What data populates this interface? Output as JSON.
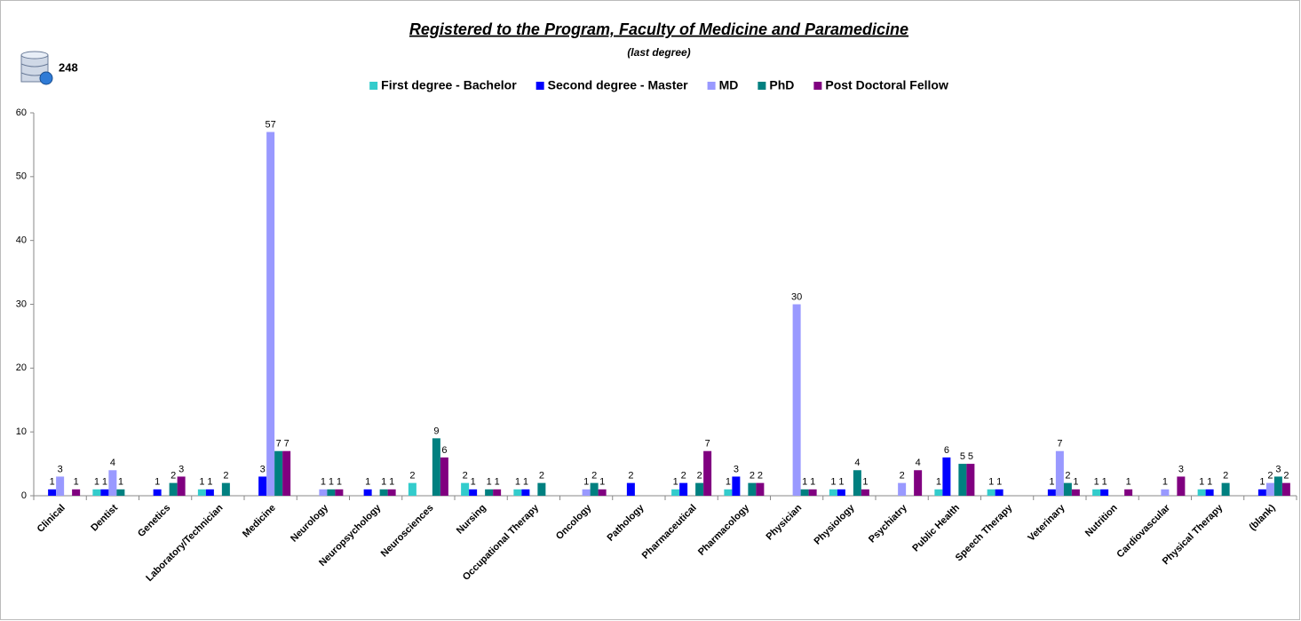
{
  "chart_data": {
    "type": "bar",
    "title": "Registered to the Program, Faculty of Medicine and Paramedicine",
    "subtitle": "(last degree)",
    "total": 248,
    "categories": [
      "Clinical",
      "Dentist",
      "Genetics",
      "Laboratory/Technician",
      "Medicine",
      "Neurology",
      "Neuropsychology",
      "Neurosciences",
      "Nursing",
      "Occupational Therapy",
      "Oncology",
      "Pathology",
      "Pharmaceutical",
      "Pharmacology",
      "Physician",
      "Physiology",
      "Psychiatry",
      "Public Health",
      "Speech Therapy",
      "Veterinary",
      "Nutrition",
      "Cardiovascular",
      "Physical Therapy",
      "(blank)"
    ],
    "series": [
      {
        "name": "First degree - Bachelor",
        "color": "#33cccc",
        "values": [
          null,
          1,
          null,
          1,
          null,
          null,
          null,
          2,
          2,
          1,
          null,
          null,
          1,
          1,
          null,
          1,
          null,
          1,
          1,
          null,
          1,
          null,
          1,
          null
        ]
      },
      {
        "name": "Second degree - Master",
        "color": "#0000ff",
        "values": [
          1,
          1,
          1,
          1,
          3,
          null,
          1,
          null,
          1,
          1,
          null,
          2,
          2,
          3,
          null,
          1,
          null,
          6,
          1,
          1,
          1,
          null,
          1,
          1
        ]
      },
      {
        "name": "MD",
        "color": "#9999ff",
        "values": [
          3,
          4,
          null,
          null,
          57,
          1,
          null,
          null,
          null,
          null,
          1,
          null,
          null,
          null,
          30,
          null,
          2,
          null,
          null,
          7,
          null,
          1,
          null,
          2
        ]
      },
      {
        "name": "PhD",
        "color": "#008080",
        "values": [
          null,
          1,
          2,
          2,
          7,
          1,
          1,
          9,
          1,
          2,
          2,
          null,
          2,
          2,
          1,
          4,
          null,
          5,
          null,
          2,
          null,
          null,
          2,
          3
        ]
      },
      {
        "name": "Post Doctoral Fellow",
        "color": "#800080",
        "values": [
          1,
          null,
          3,
          null,
          7,
          1,
          1,
          6,
          1,
          null,
          1,
          null,
          7,
          2,
          1,
          1,
          4,
          5,
          null,
          1,
          1,
          3,
          null,
          2
        ]
      }
    ],
    "ylim": [
      0,
      60
    ],
    "yticks": [
      0,
      10,
      20,
      30,
      40,
      50,
      60
    ],
    "grid": false,
    "legend": "top"
  }
}
